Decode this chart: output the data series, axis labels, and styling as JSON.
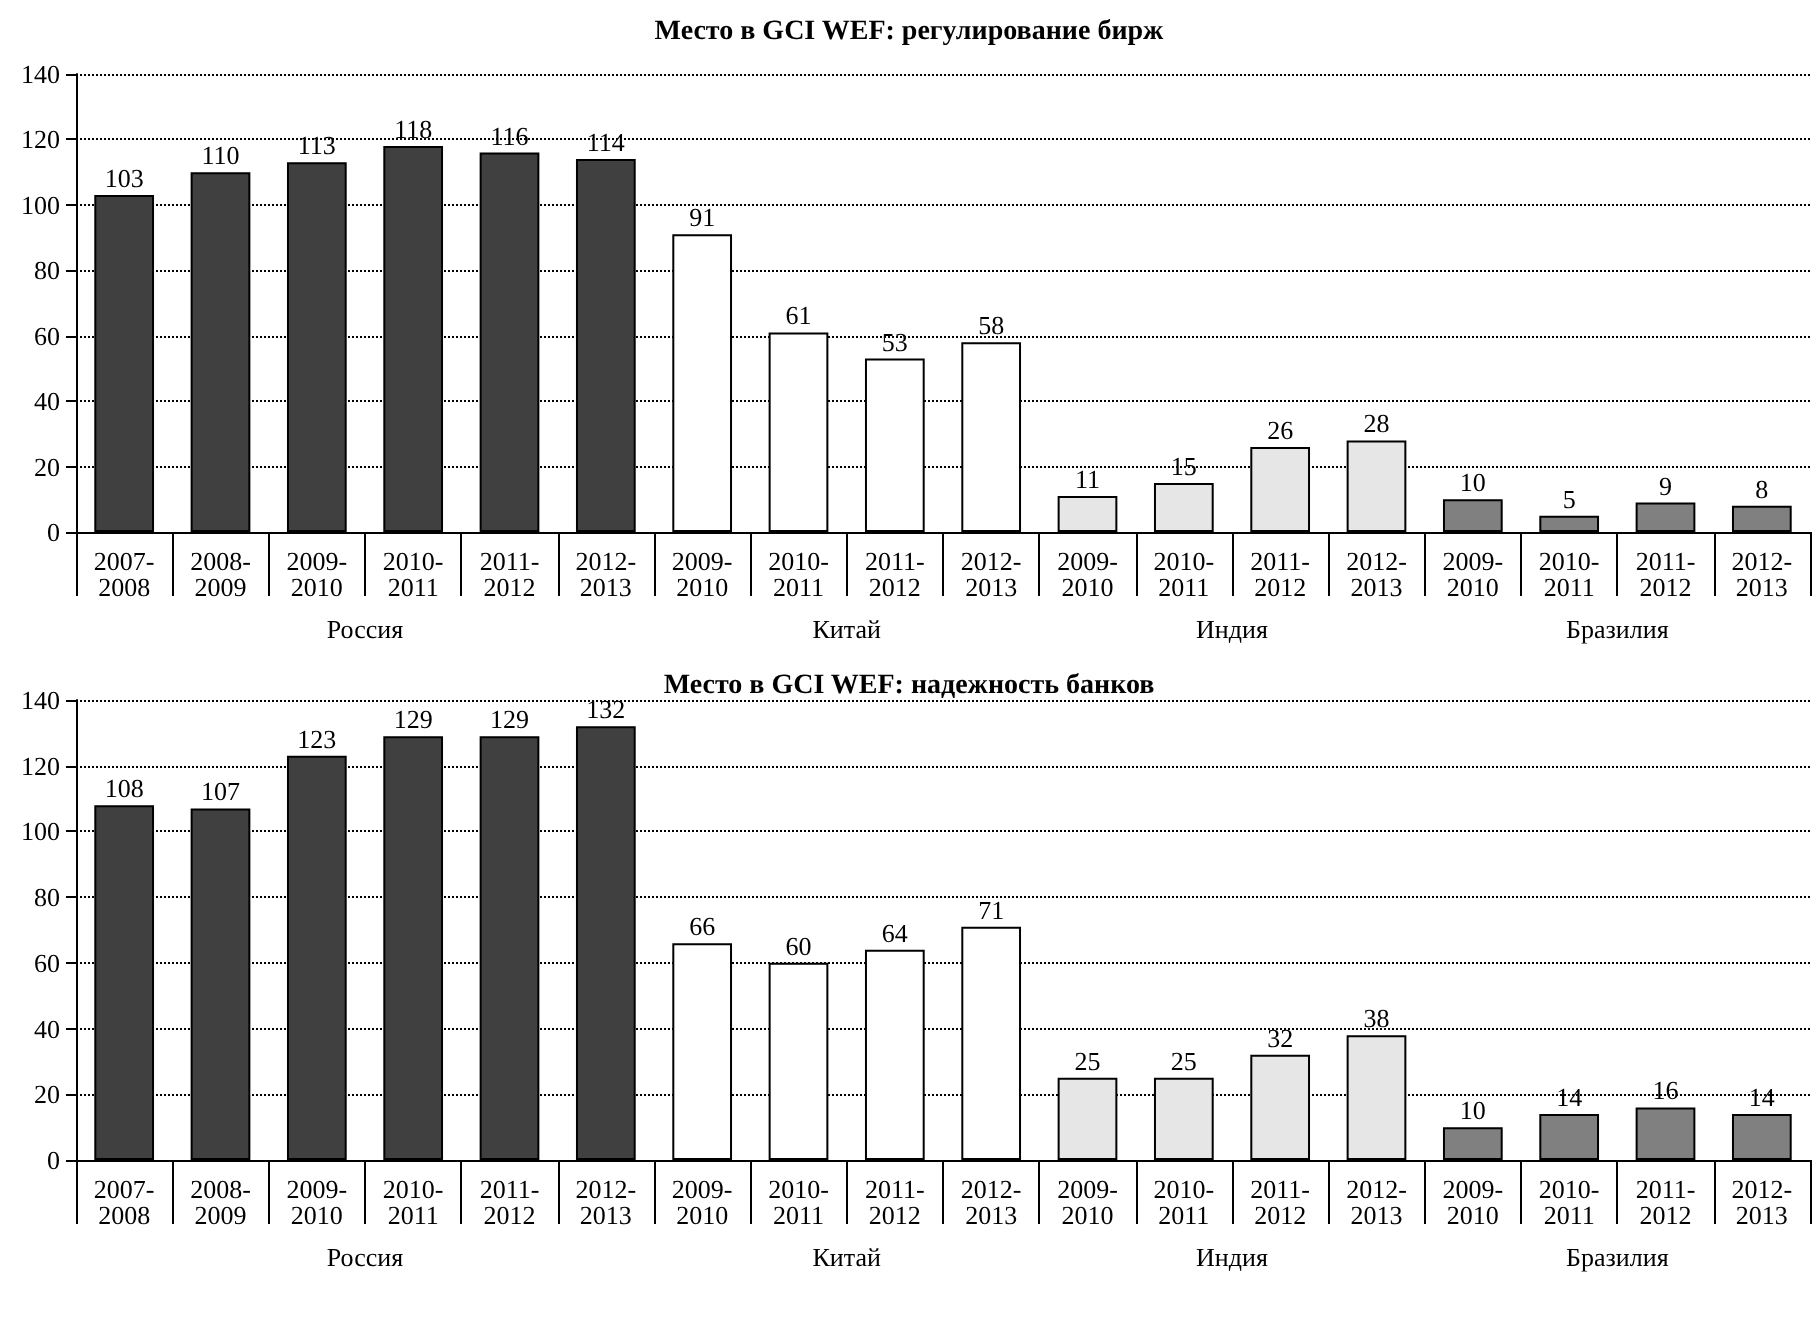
{
  "chart_data": [
    {
      "type": "bar",
      "title": "Место в GCI WEF: регулирование бирж",
      "categories": [
        "2007-2008",
        "2008-2009",
        "2009-2010",
        "2010-2011",
        "2011-2012",
        "2012-2013",
        "2009-2010",
        "2010-2011",
        "2011-2012",
        "2012-2013",
        "2009-2010",
        "2010-2011",
        "2011-2012",
        "2012-2013",
        "2009-2010",
        "2010-2011",
        "2011-2012",
        "2012-2013"
      ],
      "annotations": [
        "Россия",
        "Китай",
        "Индия",
        "Бразилия"
      ],
      "series": [
        {
          "color": "#404040",
          "values": [
            103,
            110,
            113,
            118,
            116,
            114,
            null,
            null,
            null,
            null,
            null,
            null,
            null,
            null,
            null,
            null,
            null,
            null
          ]
        },
        {
          "color": "#ffffff",
          "values": [
            null,
            null,
            null,
            null,
            null,
            null,
            91,
            61,
            53,
            58,
            null,
            null,
            null,
            null,
            null,
            null,
            null,
            null
          ]
        },
        {
          "color": "#e6e6e6",
          "values": [
            null,
            null,
            null,
            null,
            null,
            null,
            null,
            null,
            null,
            null,
            11,
            15,
            26,
            28,
            null,
            null,
            null,
            null
          ]
        },
        {
          "color": "#808080",
          "values": [
            null,
            null,
            null,
            null,
            null,
            null,
            null,
            null,
            null,
            null,
            null,
            null,
            null,
            null,
            10,
            5,
            9,
            8
          ]
        }
      ],
      "ylim": [
        0,
        140
      ],
      "yticks": [
        0,
        20,
        40,
        60,
        80,
        100,
        120,
        140
      ],
      "grid": "y",
      "data_labels": true
    },
    {
      "type": "bar",
      "title": "Место в GCI WEF: надежность банков",
      "categories": [
        "2007-2008",
        "2008-2009",
        "2009-2010",
        "2010-2011",
        "2011-2012",
        "2012-2013",
        "2009-2010",
        "2010-2011",
        "2011-2012",
        "2012-2013",
        "2009-2010",
        "2010-2011",
        "2011-2012",
        "2012-2013",
        "2009-2010",
        "2010-2011",
        "2011-2012",
        "2012-2013"
      ],
      "annotations": [
        "Россия",
        "Китай",
        "Индия",
        "Бразилия"
      ],
      "series": [
        {
          "color": "#404040",
          "values": [
            108,
            107,
            123,
            129,
            129,
            132,
            null,
            null,
            null,
            null,
            null,
            null,
            null,
            null,
            null,
            null,
            null,
            null
          ]
        },
        {
          "color": "#ffffff",
          "values": [
            null,
            null,
            null,
            null,
            null,
            null,
            66,
            60,
            64,
            71,
            null,
            null,
            null,
            null,
            null,
            null,
            null,
            null
          ]
        },
        {
          "color": "#e6e6e6",
          "values": [
            null,
            null,
            null,
            null,
            null,
            null,
            null,
            null,
            null,
            null,
            25,
            25,
            32,
            38,
            null,
            null,
            null,
            null
          ]
        },
        {
          "color": "#808080",
          "values": [
            null,
            null,
            null,
            null,
            null,
            null,
            null,
            null,
            null,
            null,
            null,
            null,
            null,
            null,
            10,
            14,
            16,
            14
          ]
        }
      ],
      "ylim": [
        0,
        140
      ],
      "yticks": [
        0,
        20,
        40,
        60,
        80,
        100,
        120,
        140
      ],
      "grid": "y",
      "data_labels": true
    }
  ]
}
